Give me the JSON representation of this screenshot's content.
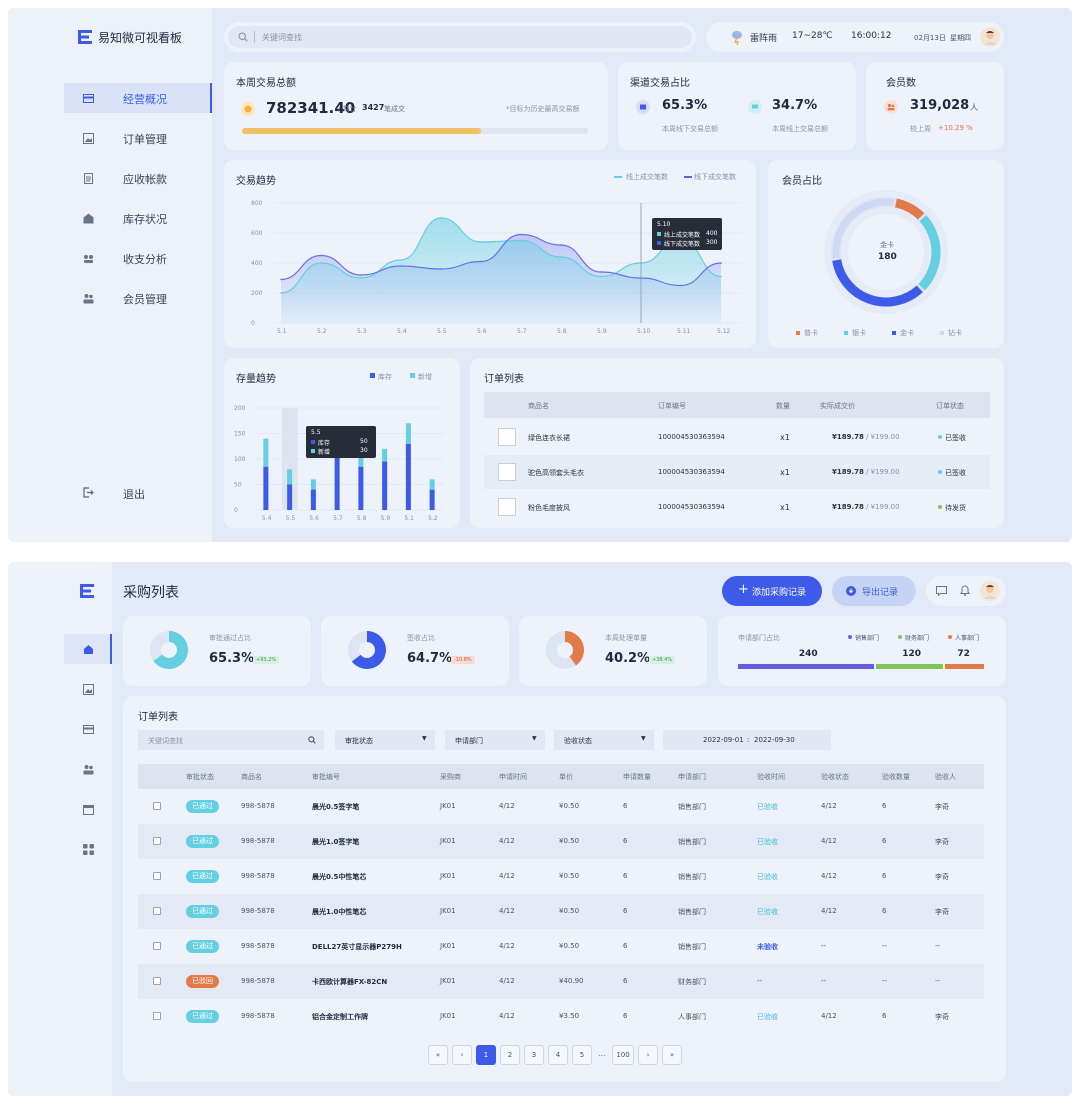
{
  "colors": {
    "primary": "#3d5be8",
    "cyan": "#63cfe0",
    "orange": "#e37a4a",
    "green": "#7fc65a",
    "purple": "#6a5be3",
    "yellow": "#f1c166"
  },
  "d1": {
    "app_title": "易知微可视看板",
    "logo_icon": "e-logo-icon",
    "nav": [
      {
        "label": "经营概况",
        "icon": "card-icon"
      },
      {
        "label": "订单管理",
        "icon": "image-icon"
      },
      {
        "label": "应收帐款",
        "icon": "document-icon"
      },
      {
        "label": "库存状况",
        "icon": "warehouse-icon"
      },
      {
        "label": "收支分析",
        "icon": "hands-icon"
      },
      {
        "label": "会员管理",
        "icon": "users-icon"
      }
    ],
    "logout": "退出",
    "search_placeholder": "关键词查找",
    "weather": "雷阵雨",
    "temp": "17~28℃",
    "time": "16:00:12",
    "date": "02月13日",
    "weekday": "星期四",
    "weekly": {
      "title": "本周交易总额",
      "amount": "782341.40",
      "prefix": "/ 共计",
      "count": "3427",
      "suffix": "笔成交",
      "note": "*目标为历史最高交易额",
      "progress": 0.69
    },
    "channel": {
      "title": "渠道交易占比",
      "offline_pct": "65.3%",
      "offline_label": "本周线下交易总额",
      "online_pct": "34.7%",
      "online_label": "本周线上交易总额"
    },
    "members": {
      "title": "会员数",
      "count": "319,028",
      "unit": "人",
      "compare": "较上周",
      "change": "+10.29 %"
    },
    "trend": {
      "title": "交易趋势",
      "legend": [
        "线上成交笔数",
        "线下成交笔数"
      ],
      "tooltip": {
        "date": "5.10",
        "rows": [
          {
            "label": "线上成交笔数",
            "value": "400"
          },
          {
            "label": "线下成交笔数",
            "value": "300"
          }
        ]
      }
    },
    "member_share": {
      "title": "会员占比",
      "center_label": "金卡",
      "center_value": "180",
      "legend": [
        "普卡",
        "银卡",
        "金卡",
        "钻卡"
      ]
    },
    "stock": {
      "title": "存量趋势",
      "legend": [
        "库存",
        "新增"
      ],
      "tooltip": {
        "date": "5.5",
        "rows": [
          {
            "label": "库存",
            "value": "50"
          },
          {
            "label": "新增",
            "value": "30"
          }
        ]
      }
    },
    "orders": {
      "title": "订单列表",
      "headers": [
        "商品名",
        "订单编号",
        "数量",
        "实际成交价",
        "订单状态"
      ],
      "rows": [
        {
          "name": "绿色连衣长裙",
          "no": "100004530363594",
          "qty": "x1",
          "price": "¥189.78",
          "orig": "/ ¥199.00",
          "status": "已签收"
        },
        {
          "name": "驼色高领套头毛衣",
          "no": "100004530363594",
          "qty": "x1",
          "price": "¥189.78",
          "orig": "/ ¥199.00",
          "status": "已签收"
        },
        {
          "name": "粉色毛度披风",
          "no": "100004530363594",
          "qty": "x1",
          "price": "¥189.78",
          "orig": "/ ¥199.00",
          "status": "待发货"
        }
      ]
    }
  },
  "d2": {
    "page_title": "采购列表",
    "add_button": "添加采购记录",
    "export_button": "导出记录",
    "stats": [
      {
        "label": "审批通过占比",
        "value": "65.3%",
        "delta": "+93.2%",
        "pct": 0.653,
        "color": "#63cfe0"
      },
      {
        "label": "签收占比",
        "value": "64.7%",
        "delta": "-10.8%",
        "pct": 0.647,
        "color": "#3d5be8"
      },
      {
        "label": "本周处理单量",
        "value": "40.2%",
        "delta": "+38.4%",
        "pct": 0.402,
        "color": "#e37a4a"
      }
    ],
    "dept": {
      "title": "申请部门占比",
      "legend": [
        "销售部门",
        "财务部门",
        "人事部门"
      ],
      "values": [
        240,
        120,
        72
      ],
      "labels": [
        "240",
        "120",
        "72"
      ]
    },
    "list_title": "订单列表",
    "filters": {
      "search_placeholder": "关键词查找",
      "approval": "审批状态",
      "dept": "申请部门",
      "receipt": "验收状态",
      "date_from": "2022-09-01",
      "date_sep": ":",
      "date_to": "2022-09-30"
    },
    "headers": [
      "审批状态",
      "商品名",
      "审批编号",
      "采购商",
      "申请时间",
      "单价",
      "申请数量",
      "申请部门",
      "验收时间",
      "验收状态",
      "验收数量",
      "验收人"
    ],
    "rows": [
      {
        "status": "已通过",
        "s": "ok",
        "code": "998-5878",
        "name": "晨光0.5签字笔",
        "buyer": "JK01",
        "date": "4/12",
        "price": "¥0.50",
        "qty": "6",
        "dept": "销售部门",
        "recv": "已验收",
        "rdate": "4/12",
        "rqty": "6",
        "person": "李奇"
      },
      {
        "status": "已通过",
        "s": "ok",
        "code": "998-5878",
        "name": "晨光1.0签字笔",
        "buyer": "JK01",
        "date": "4/12",
        "price": "¥0.50",
        "qty": "6",
        "dept": "销售部门",
        "recv": "已验收",
        "rdate": "4/12",
        "rqty": "6",
        "person": "李奇"
      },
      {
        "status": "已通过",
        "s": "ok",
        "code": "998-5878",
        "name": "晨光0.5中性笔芯",
        "buyer": "JK01",
        "date": "4/12",
        "price": "¥0.50",
        "qty": "6",
        "dept": "销售部门",
        "recv": "已验收",
        "rdate": "4/12",
        "rqty": "6",
        "person": "李奇"
      },
      {
        "status": "已通过",
        "s": "ok",
        "code": "998-5878",
        "name": "晨光1.0中性笔芯",
        "buyer": "JK01",
        "date": "4/12",
        "price": "¥0.50",
        "qty": "6",
        "dept": "销售部门",
        "recv": "已验收",
        "rdate": "4/12",
        "rqty": "6",
        "person": "李奇"
      },
      {
        "status": "已通过",
        "s": "ok",
        "code": "998-5878",
        "name": "DELL27英寸显示器P279H",
        "buyer": "JK01",
        "date": "4/12",
        "price": "¥0.50",
        "qty": "6",
        "dept": "销售部门",
        "recv": "未验收",
        "rdate": "--",
        "rqty": "--",
        "person": "--"
      },
      {
        "status": "已驳回",
        "s": "rej",
        "code": "998-5878",
        "name": "卡西欧计算器FX-82CN",
        "buyer": "JK01",
        "date": "4/12",
        "price": "¥40.90",
        "qty": "6",
        "dept": "财务部门",
        "recv": "--",
        "rdate": "--",
        "rqty": "--",
        "person": "--"
      },
      {
        "status": "已通过",
        "s": "ok",
        "code": "998-5878",
        "name": "铝合金定制工作牌",
        "buyer": "JK01",
        "date": "4/12",
        "price": "¥3.50",
        "qty": "6",
        "dept": "人事部门",
        "recv": "已验收",
        "rdate": "4/12",
        "rqty": "6",
        "person": "李奇"
      }
    ],
    "pagination": {
      "first": "«",
      "prev": "‹",
      "pages": [
        "1",
        "2",
        "3",
        "4",
        "5"
      ],
      "ellipsis": "...",
      "last_page": "100",
      "next": "›",
      "last": "»",
      "current": "1"
    }
  },
  "chart_data": [
    {
      "type": "line",
      "title": "交易趋势",
      "categories": [
        "5.1",
        "5.2",
        "5.3",
        "5.4",
        "5.5",
        "5.6",
        "5.7",
        "5.8",
        "5.9",
        "5.10",
        "5.11",
        "5.12"
      ],
      "ylim": [
        0,
        800
      ],
      "yticks": [
        0,
        200,
        400,
        600,
        800
      ],
      "series": [
        {
          "name": "线上成交笔数",
          "values": [
            200,
            400,
            300,
            420,
            700,
            540,
            550,
            440,
            310,
            400,
            560,
            310
          ]
        },
        {
          "name": "线下成交笔数",
          "values": [
            290,
            450,
            320,
            380,
            360,
            410,
            590,
            520,
            340,
            300,
            250,
            400
          ]
        }
      ]
    },
    {
      "type": "pie",
      "title": "会员占比",
      "categories": [
        "普卡",
        "银卡",
        "金卡",
        "钻卡"
      ],
      "values": [
        10,
        25,
        35,
        30
      ],
      "center": {
        "label": "金卡",
        "value": "180"
      }
    },
    {
      "type": "bar",
      "title": "存量趋势",
      "categories": [
        "5.4",
        "5.5",
        "5.6",
        "5.7",
        "5.8",
        "5.9",
        "5.1",
        "5.2"
      ],
      "ylim": [
        0,
        200
      ],
      "yticks": [
        0,
        50,
        100,
        150,
        200
      ],
      "series": [
        {
          "name": "库存",
          "values": [
            85,
            50,
            40,
            130,
            85,
            95,
            130,
            40
          ]
        },
        {
          "name": "新增",
          "values": [
            55,
            30,
            20,
            0,
            25,
            25,
            40,
            20
          ]
        }
      ]
    },
    {
      "type": "pie",
      "title": "审批通过占比",
      "values": [
        65.3,
        34.7
      ]
    },
    {
      "type": "pie",
      "title": "签收占比",
      "values": [
        64.7,
        35.3
      ]
    },
    {
      "type": "pie",
      "title": "本周处理单量",
      "values": [
        40.2,
        59.8
      ]
    },
    {
      "type": "bar",
      "title": "申请部门占比",
      "categories": [
        "销售部门",
        "财务部门",
        "人事部门"
      ],
      "values": [
        240,
        120,
        72
      ]
    }
  ]
}
